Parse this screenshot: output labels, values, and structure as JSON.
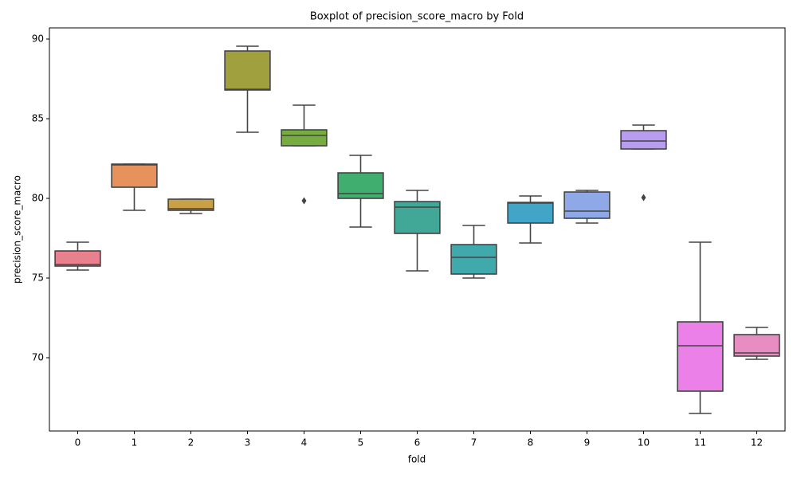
{
  "chart_data": {
    "type": "box",
    "title": "Boxplot of precision_score_macro by Fold",
    "xlabel": "fold",
    "ylabel": "precision_score_macro",
    "categories": [
      "0",
      "1",
      "2",
      "3",
      "4",
      "5",
      "6",
      "7",
      "8",
      "9",
      "10",
      "11",
      "12"
    ],
    "boxes": [
      {
        "low": 75.5,
        "q1": 75.75,
        "median": 75.85,
        "q3": 76.7,
        "high": 77.25,
        "color": "#e8808e"
      },
      {
        "low": 79.25,
        "q1": 80.7,
        "median": 82.1,
        "q3": 82.15,
        "high": 82.15,
        "color": "#e7925c"
      },
      {
        "low": 79.05,
        "q1": 79.25,
        "median": 79.35,
        "q3": 79.95,
        "high": 79.95,
        "color": "#c7a047"
      },
      {
        "low": 84.15,
        "q1": 86.8,
        "median": 86.85,
        "q3": 89.25,
        "high": 89.55,
        "color": "#a0a03e"
      },
      {
        "low": 83.3,
        "q1": 83.3,
        "median": 83.95,
        "q3": 84.3,
        "high": 85.85,
        "outliers": [
          79.85
        ],
        "color": "#77ad3e"
      },
      {
        "low": 78.2,
        "q1": 80.0,
        "median": 80.3,
        "q3": 81.6,
        "high": 82.7,
        "color": "#3fae6e"
      },
      {
        "low": 75.45,
        "q1": 77.8,
        "median": 79.45,
        "q3": 79.8,
        "high": 80.5,
        "color": "#41a796"
      },
      {
        "low": 75.0,
        "q1": 75.25,
        "median": 76.3,
        "q3": 77.1,
        "high": 78.3,
        "color": "#3fa9ac"
      },
      {
        "low": 77.2,
        "q1": 78.45,
        "median": 79.7,
        "q3": 79.75,
        "high": 80.15,
        "color": "#42a5c8"
      },
      {
        "low": 78.45,
        "q1": 78.75,
        "median": 79.2,
        "q3": 80.4,
        "high": 80.5,
        "color": "#8ea8e8"
      },
      {
        "low": 83.1,
        "q1": 83.1,
        "median": 83.6,
        "q3": 84.25,
        "high": 84.6,
        "outliers": [
          80.05
        ],
        "color": "#b89cf0"
      },
      {
        "low": 66.5,
        "q1": 67.9,
        "median": 70.75,
        "q3": 72.25,
        "high": 77.25,
        "color": "#ea80e8"
      },
      {
        "low": 69.9,
        "q1": 70.1,
        "median": 70.3,
        "q3": 71.45,
        "high": 71.9,
        "color": "#e88dc2"
      }
    ],
    "ylim": [
      65.4,
      90.7
    ],
    "yticks": [
      70,
      75,
      80,
      85,
      90
    ]
  }
}
